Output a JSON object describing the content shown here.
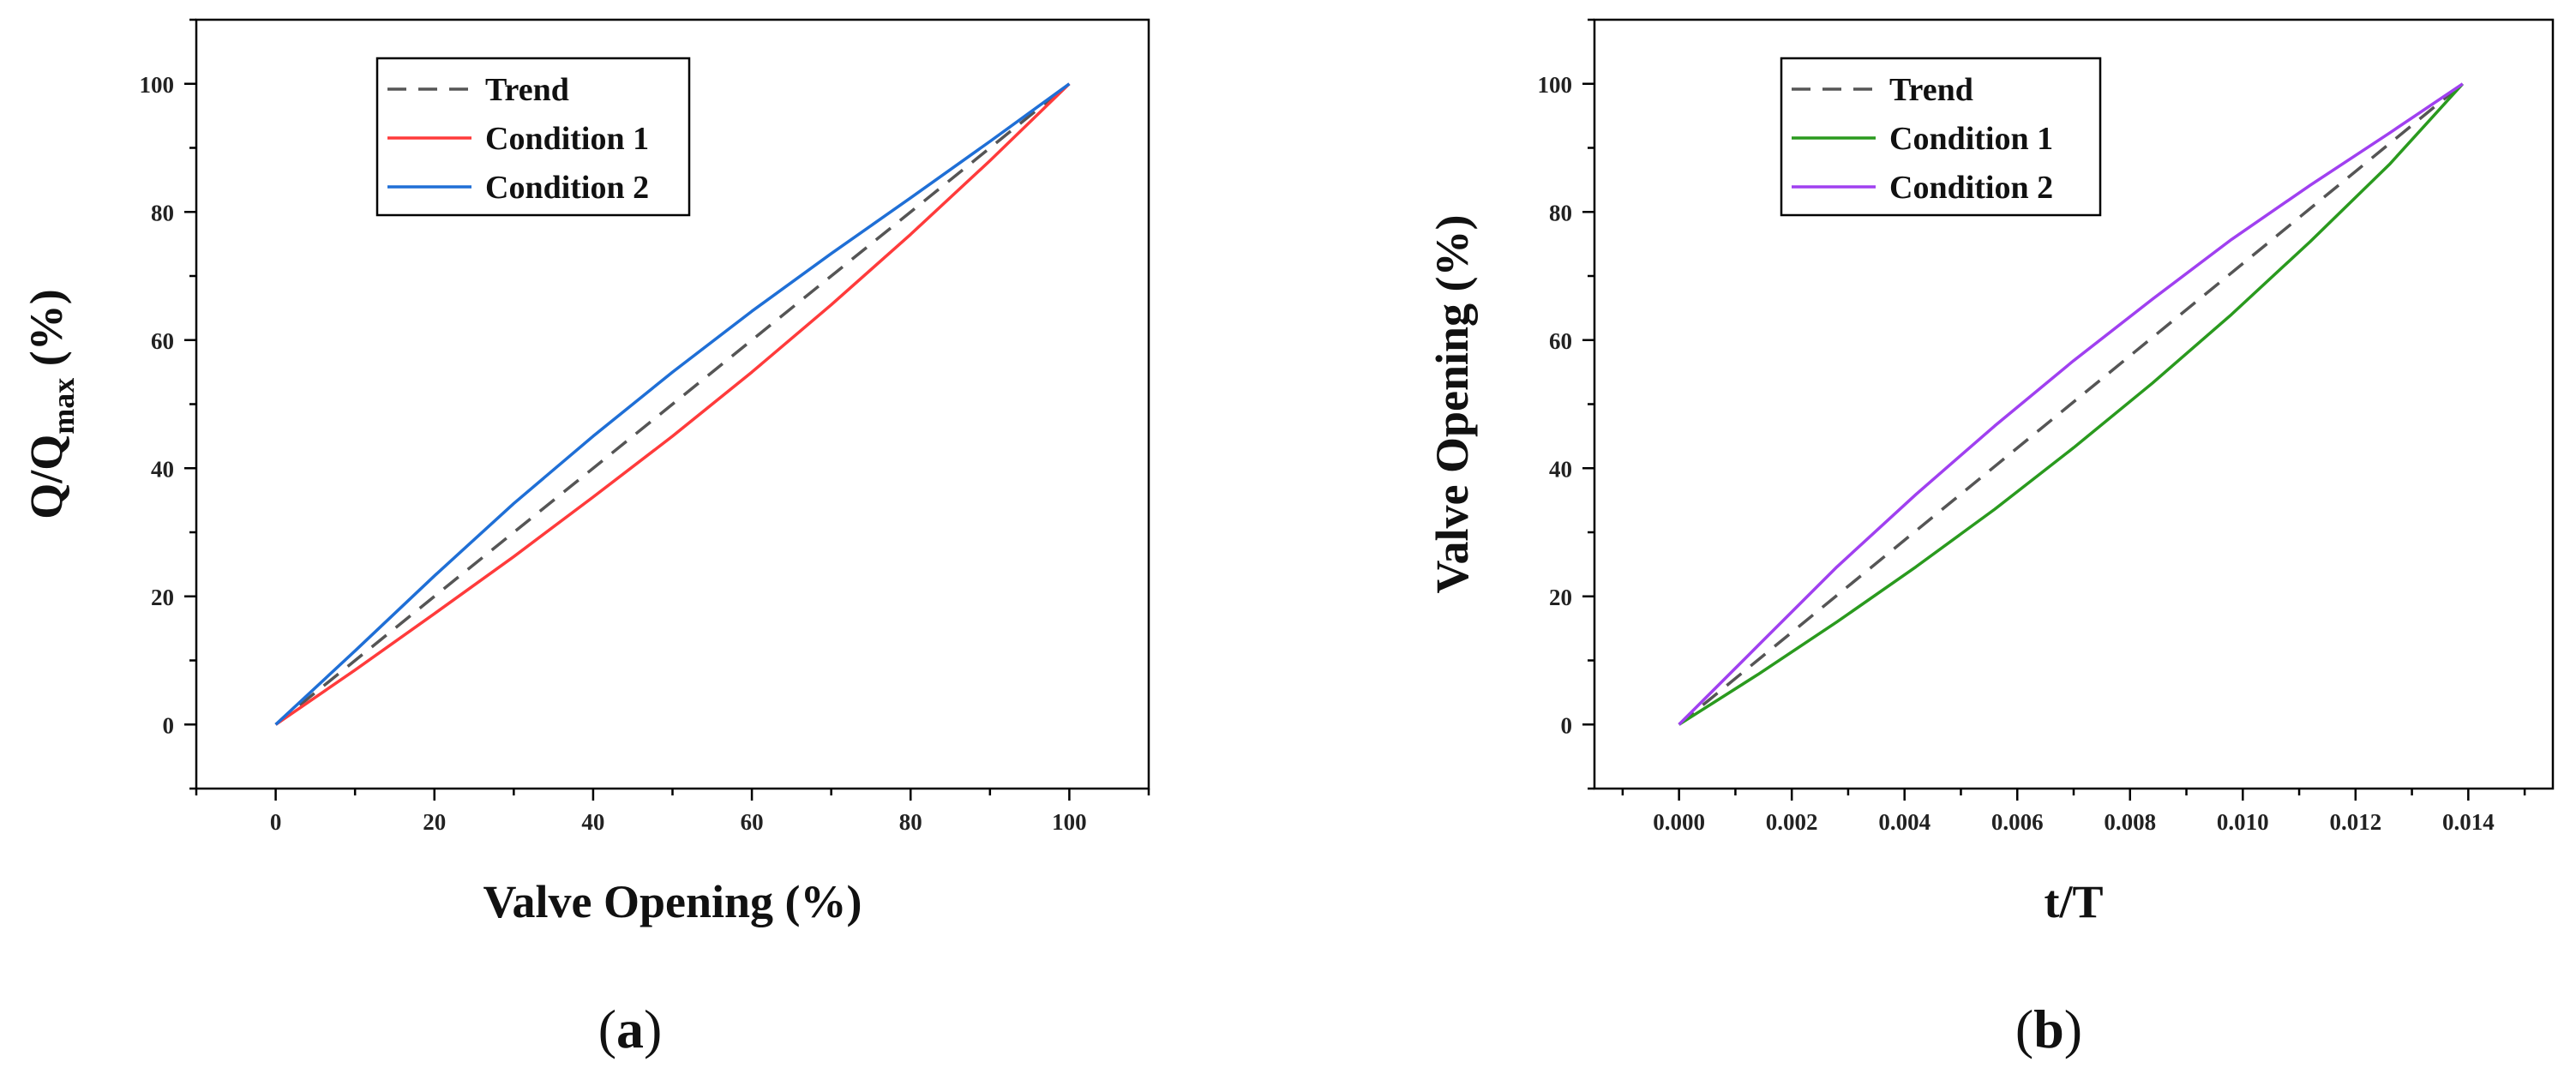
{
  "chart_data": [
    {
      "id": "a",
      "type": "line",
      "panel_label": {
        "open": "(",
        "letter": "a",
        "close": ")"
      },
      "xlabel": "Valve Opening (%)",
      "ylabel": {
        "main": "Q/Q",
        "sub": "max",
        "unit": " (%)"
      },
      "xlim": [
        -10,
        110
      ],
      "ylim": [
        -10,
        110
      ],
      "xticks": [
        0,
        20,
        40,
        60,
        80,
        100
      ],
      "yticks": [
        0,
        20,
        40,
        60,
        80,
        100
      ],
      "xtick_labels": [
        "0",
        "20",
        "40",
        "60",
        "80",
        "100"
      ],
      "ytick_labels": [
        "0",
        "20",
        "40",
        "60",
        "80",
        "100"
      ],
      "legend_position": "top-left",
      "series": [
        {
          "name": "Trend",
          "color": "#555555",
          "style": "dashed",
          "x": [
            0,
            100
          ],
          "y": [
            0,
            100
          ]
        },
        {
          "name": "Condition 1",
          "color": "#ff3b3b",
          "style": "solid",
          "x": [
            0,
            10,
            20,
            30,
            40,
            50,
            60,
            70,
            80,
            90,
            100
          ],
          "y": [
            0,
            8.5,
            17.3,
            26.2,
            35.5,
            45,
            55,
            65.5,
            76.5,
            88,
            100
          ]
        },
        {
          "name": "Condition 2",
          "color": "#1f6fd6",
          "style": "solid",
          "x": [
            0,
            10,
            20,
            30,
            40,
            50,
            60,
            70,
            80,
            90,
            100
          ],
          "y": [
            0,
            11.5,
            23.2,
            34.5,
            45,
            55,
            64.5,
            73.5,
            82.2,
            91,
            100
          ]
        }
      ]
    },
    {
      "id": "b",
      "type": "line",
      "panel_label": {
        "open": "(",
        "letter": "b",
        "close": ")"
      },
      "xlabel": "t/T",
      "ylabel": {
        "main": "Valve Opening (%)",
        "sub": "",
        "unit": ""
      },
      "xlim": [
        -0.0015,
        0.0155
      ],
      "ylim": [
        -10,
        110
      ],
      "xticks": [
        0,
        0.002,
        0.004,
        0.006,
        0.008,
        0.01,
        0.012,
        0.014
      ],
      "yticks": [
        0,
        20,
        40,
        60,
        80,
        100
      ],
      "xtick_labels": [
        "0.000",
        "0.002",
        "0.004",
        "0.006",
        "0.008",
        "0.010",
        "0.012",
        "0.014"
      ],
      "ytick_labels": [
        "0",
        "20",
        "40",
        "60",
        "80",
        "100"
      ],
      "legend_position": "top-left",
      "series": [
        {
          "name": "Trend",
          "color": "#555555",
          "style": "dashed",
          "x": [
            0,
            0.0139
          ],
          "y": [
            0,
            100
          ]
        },
        {
          "name": "Condition 1",
          "color": "#2a9a1e",
          "style": "solid",
          "x": [
            0,
            0.0014,
            0.0028,
            0.0042,
            0.0056,
            0.007,
            0.0084,
            0.0098,
            0.0112,
            0.0126,
            0.0139
          ],
          "y": [
            0,
            7.8,
            16,
            24.6,
            33.6,
            43.2,
            53.3,
            64,
            75.4,
            87.4,
            100
          ]
        },
        {
          "name": "Condition 2",
          "color": "#a040f0",
          "style": "solid",
          "x": [
            0,
            0.0014,
            0.0028,
            0.0042,
            0.0056,
            0.007,
            0.0084,
            0.0098,
            0.0112,
            0.0126,
            0.0139
          ],
          "y": [
            0,
            12.3,
            24.6,
            35.9,
            46.6,
            56.8,
            66.4,
            75.7,
            84.2,
            92.3,
            100
          ]
        }
      ]
    }
  ]
}
